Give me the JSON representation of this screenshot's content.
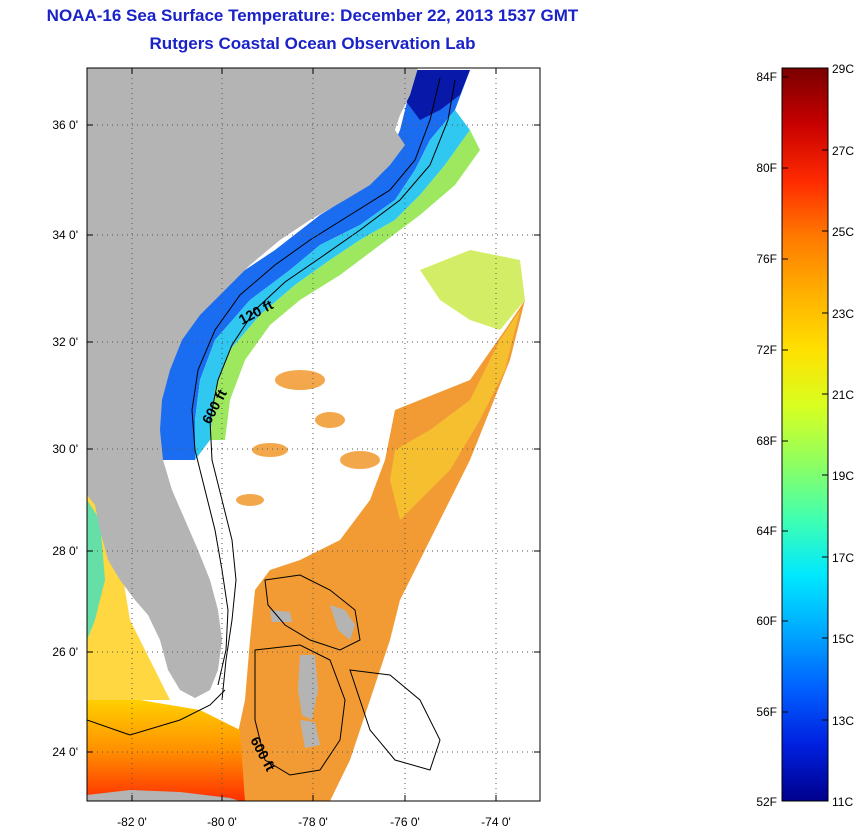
{
  "title": "NOAA-16 Sea Surface Temperature:  December 22, 2013 1537 GMT",
  "subtitle": "Rutgers Coastal Ocean Observation Lab",
  "map": {
    "lon_range": [
      -83,
      -73
    ],
    "lat_range": [
      23,
      37
    ],
    "lat_ticks": [
      "36 0'",
      "34 0'",
      "32 0'",
      "30 0'",
      "28 0'",
      "26 0'",
      "24 0'"
    ],
    "lon_ticks": [
      "-82 0'",
      "-80 0'",
      "-78 0'",
      "-76 0'",
      "-74 0'"
    ],
    "gridlines": "dotted",
    "land_color": "#b4b4b4",
    "contour_labels": [
      "120 ft",
      "600 ft",
      "600 ft"
    ]
  },
  "colorbar": {
    "fahrenheit_labels": [
      "84F",
      "80F",
      "76F",
      "72F",
      "68F",
      "64F",
      "60F",
      "56F",
      "52F"
    ],
    "celsius_labels": [
      "29C",
      "27C",
      "25C",
      "23C",
      "21C",
      "19C",
      "17C",
      "15C",
      "13C",
      "11C"
    ],
    "range_c": [
      11,
      29
    ],
    "colors": [
      "#7a0000",
      "#c80000",
      "#ff2a00",
      "#ff7a00",
      "#ffb000",
      "#ffe000",
      "#d8ff20",
      "#90ff60",
      "#40ffb0",
      "#00e8ff",
      "#00a8ff",
      "#0060ff",
      "#0020e0",
      "#00008c"
    ]
  }
}
